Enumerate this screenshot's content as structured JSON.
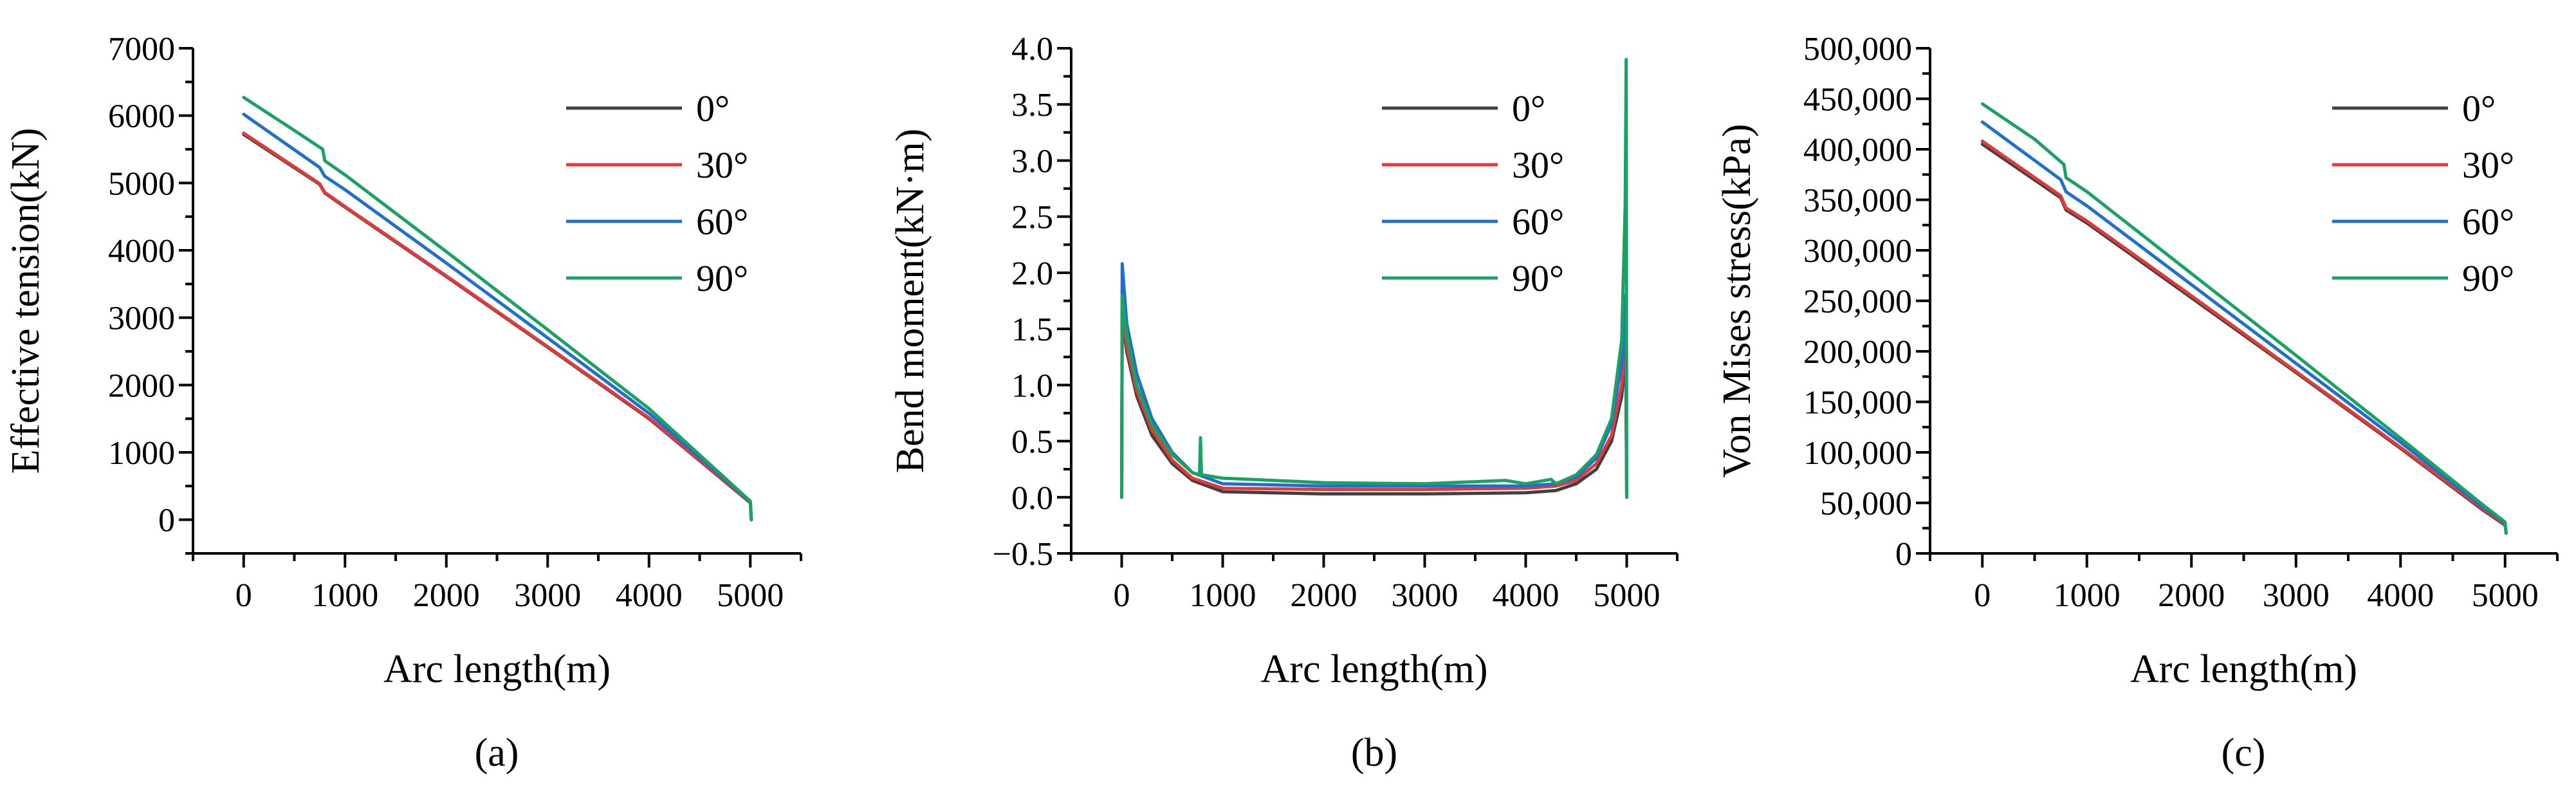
{
  "chart_data": [
    {
      "type": "line",
      "panel_label": "(a)",
      "xlabel": "Arc length(m)",
      "ylabel": "Effective tension(kN)",
      "xlim": [
        -500,
        5500
      ],
      "ylim": [
        -500,
        7000
      ],
      "xticks": [
        0,
        1000,
        2000,
        3000,
        4000,
        5000
      ],
      "xtick_labels": [
        "0",
        "1000",
        "2000",
        "3000",
        "4000",
        "5000"
      ],
      "yticks": [
        0,
        1000,
        2000,
        3000,
        4000,
        5000,
        6000,
        7000
      ],
      "ytick_labels": [
        "0",
        "1000",
        "2000",
        "3000",
        "4000",
        "5000",
        "6000",
        "7000"
      ],
      "legend_position": "top-right",
      "series": [
        {
          "name": "0°",
          "color": "#404040",
          "points": [
            [
              0,
              5720
            ],
            [
              750,
              4980
            ],
            [
              800,
              4850
            ],
            [
              1000,
              4640
            ],
            [
              2000,
              3610
            ],
            [
              3000,
              2560
            ],
            [
              4000,
              1500
            ],
            [
              5000,
              250
            ],
            [
              5010,
              0
            ]
          ]
        },
        {
          "name": "30°",
          "color": "#e03a3a",
          "points": [
            [
              0,
              5740
            ],
            [
              750,
              4990
            ],
            [
              800,
              4860
            ],
            [
              1000,
              4650
            ],
            [
              2000,
              3620
            ],
            [
              3000,
              2570
            ],
            [
              4000,
              1510
            ],
            [
              5000,
              255
            ],
            [
              5010,
              0
            ]
          ]
        },
        {
          "name": "60°",
          "color": "#1f6fd0",
          "points": [
            [
              0,
              6020
            ],
            [
              750,
              5230
            ],
            [
              800,
              5100
            ],
            [
              1000,
              4900
            ],
            [
              2000,
              3810
            ],
            [
              3000,
              2700
            ],
            [
              4000,
              1580
            ],
            [
              5000,
              265
            ],
            [
              5010,
              0
            ]
          ]
        },
        {
          "name": "90°",
          "color": "#1aa263",
          "points": [
            [
              0,
              6270
            ],
            [
              500,
              5780
            ],
            [
              780,
              5500
            ],
            [
              800,
              5330
            ],
            [
              1000,
              5120
            ],
            [
              2000,
              3980
            ],
            [
              3000,
              2820
            ],
            [
              4000,
              1650
            ],
            [
              5000,
              275
            ],
            [
              5010,
              0
            ]
          ]
        }
      ]
    },
    {
      "type": "line",
      "panel_label": "(b)",
      "xlabel": "Arc length(m)",
      "ylabel": "Bend moment(kN·m)",
      "xlim": [
        -500,
        5500
      ],
      "ylim": [
        -0.5,
        4.0
      ],
      "xticks": [
        0,
        1000,
        2000,
        3000,
        4000,
        5000
      ],
      "xtick_labels": [
        "0",
        "1000",
        "2000",
        "3000",
        "4000",
        "5000"
      ],
      "yticks": [
        -0.5,
        0,
        0.5,
        1.0,
        1.5,
        2.0,
        2.5,
        3.0,
        3.5,
        4.0
      ],
      "ytick_labels": [
        "−0.5",
        "0.0",
        "0.5",
        "1.0",
        "1.5",
        "2.0",
        "2.5",
        "3.0",
        "3.5",
        "4.0"
      ],
      "legend_position": "top-right",
      "series": [
        {
          "name": "0°",
          "color": "#404040",
          "points": [
            [
              0,
              0
            ],
            [
              5,
              1.6
            ],
            [
              50,
              1.3
            ],
            [
              150,
              0.9
            ],
            [
              300,
              0.55
            ],
            [
              500,
              0.3
            ],
            [
              700,
              0.15
            ],
            [
              1000,
              0.05
            ],
            [
              2000,
              0.03
            ],
            [
              3000,
              0.03
            ],
            [
              4000,
              0.04
            ],
            [
              4300,
              0.06
            ],
            [
              4500,
              0.12
            ],
            [
              4700,
              0.25
            ],
            [
              4850,
              0.5
            ],
            [
              4950,
              0.9
            ],
            [
              4990,
              1.3
            ],
            [
              5000,
              0
            ]
          ]
        },
        {
          "name": "30°",
          "color": "#e03a3a",
          "points": [
            [
              0,
              0
            ],
            [
              5,
              1.65
            ],
            [
              50,
              1.35
            ],
            [
              150,
              0.95
            ],
            [
              300,
              0.6
            ],
            [
              500,
              0.33
            ],
            [
              700,
              0.17
            ],
            [
              1000,
              0.08
            ],
            [
              2000,
              0.07
            ],
            [
              3000,
              0.07
            ],
            [
              4000,
              0.08
            ],
            [
              4300,
              0.1
            ],
            [
              4500,
              0.15
            ],
            [
              4700,
              0.3
            ],
            [
              4850,
              0.55
            ],
            [
              4950,
              1.0
            ],
            [
              4990,
              1.4
            ],
            [
              5000,
              0
            ]
          ]
        },
        {
          "name": "60°",
          "color": "#1f6fd0",
          "points": [
            [
              0,
              0
            ],
            [
              5,
              2.08
            ],
            [
              50,
              1.55
            ],
            [
              150,
              1.1
            ],
            [
              300,
              0.7
            ],
            [
              500,
              0.4
            ],
            [
              700,
              0.22
            ],
            [
              1000,
              0.12
            ],
            [
              2000,
              0.1
            ],
            [
              3000,
              0.1
            ],
            [
              4000,
              0.1
            ],
            [
              4300,
              0.12
            ],
            [
              4500,
              0.18
            ],
            [
              4700,
              0.35
            ],
            [
              4850,
              0.65
            ],
            [
              4950,
              1.2
            ],
            [
              4990,
              1.8
            ],
            [
              5000,
              0
            ]
          ]
        },
        {
          "name": "90°",
          "color": "#1aa263",
          "points": [
            [
              0,
              0
            ],
            [
              5,
              1.8
            ],
            [
              50,
              1.45
            ],
            [
              150,
              1.0
            ],
            [
              300,
              0.65
            ],
            [
              500,
              0.38
            ],
            [
              700,
              0.22
            ],
            [
              770,
              0.2
            ],
            [
              780,
              0.53
            ],
            [
              790,
              0.2
            ],
            [
              1000,
              0.17
            ],
            [
              2000,
              0.13
            ],
            [
              3000,
              0.12
            ],
            [
              3800,
              0.15
            ],
            [
              4000,
              0.12
            ],
            [
              4250,
              0.16
            ],
            [
              4300,
              0.12
            ],
            [
              4500,
              0.2
            ],
            [
              4700,
              0.38
            ],
            [
              4850,
              0.7
            ],
            [
              4950,
              1.4
            ],
            [
              4985,
              2.6
            ],
            [
              4995,
              3.9
            ],
            [
              5000,
              0
            ]
          ]
        }
      ]
    },
    {
      "type": "line",
      "panel_label": "(c)",
      "xlabel": "Arc length(m)",
      "ylabel": "Von Mises stress(kPa)",
      "xlim": [
        -500,
        5500
      ],
      "ylim": [
        0,
        500000
      ],
      "xticks": [
        0,
        1000,
        2000,
        3000,
        4000,
        5000
      ],
      "xtick_labels": [
        "0",
        "1000",
        "2000",
        "3000",
        "4000",
        "5000"
      ],
      "yticks": [
        0,
        50000,
        100000,
        150000,
        200000,
        250000,
        300000,
        350000,
        400000,
        450000,
        500000
      ],
      "ytick_labels": [
        "0",
        "50,000",
        "100,000",
        "150,000",
        "200,000",
        "250,000",
        "300,000",
        "350,000",
        "400,000",
        "450,000",
        "500,000"
      ],
      "legend_position": "top-right",
      "series": [
        {
          "name": "0°",
          "color": "#404040",
          "points": [
            [
              0,
              405000
            ],
            [
              750,
              352000
            ],
            [
              800,
              340000
            ],
            [
              1000,
              327000
            ],
            [
              2000,
              253000
            ],
            [
              3000,
              179000
            ],
            [
              4000,
              104000
            ],
            [
              4800,
              42000
            ],
            [
              5000,
              28000
            ],
            [
              5010,
              20000
            ]
          ]
        },
        {
          "name": "30°",
          "color": "#e03a3a",
          "points": [
            [
              0,
              408000
            ],
            [
              750,
              354000
            ],
            [
              800,
              342000
            ],
            [
              1000,
              329000
            ],
            [
              2000,
              255000
            ],
            [
              3000,
              180000
            ],
            [
              4000,
              105000
            ],
            [
              4800,
              43000
            ],
            [
              5000,
              29000
            ],
            [
              5010,
              20000
            ]
          ]
        },
        {
          "name": "60°",
          "color": "#1f6fd0",
          "points": [
            [
              0,
              427000
            ],
            [
              750,
              370000
            ],
            [
              800,
              358000
            ],
            [
              1000,
              344000
            ],
            [
              2000,
              266000
            ],
            [
              3000,
              188000
            ],
            [
              4000,
              110000
            ],
            [
              4800,
              45000
            ],
            [
              5000,
              30000
            ],
            [
              5010,
              20000
            ]
          ]
        },
        {
          "name": "90°",
          "color": "#1aa263",
          "points": [
            [
              0,
              445000
            ],
            [
              500,
              410000
            ],
            [
              780,
              385000
            ],
            [
              800,
              372000
            ],
            [
              1000,
              358000
            ],
            [
              2000,
              277000
            ],
            [
              3000,
              196000
            ],
            [
              4000,
              114000
            ],
            [
              4800,
              47000
            ],
            [
              5000,
              31000
            ],
            [
              5010,
              20000
            ]
          ]
        }
      ]
    }
  ]
}
